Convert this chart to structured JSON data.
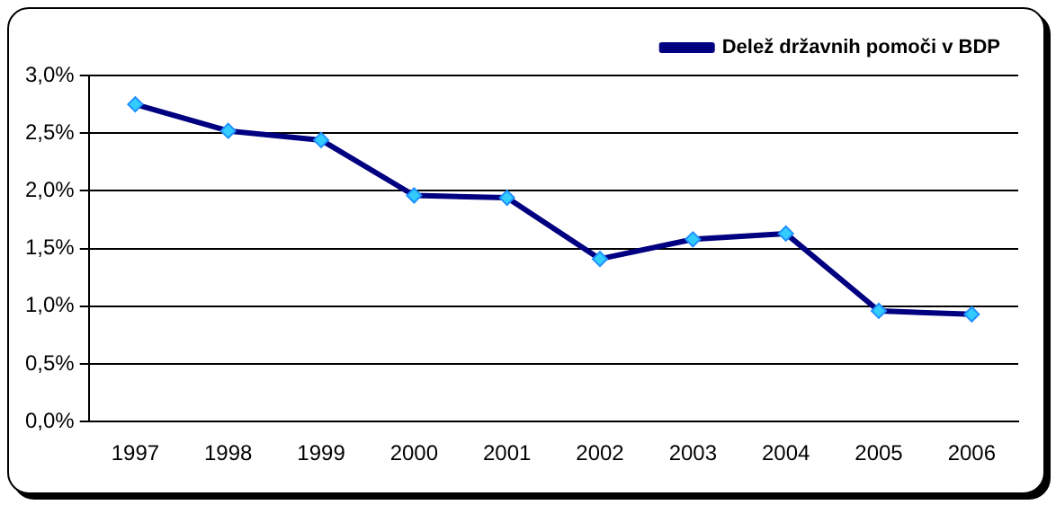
{
  "chart_data": {
    "type": "line",
    "categories": [
      "1997",
      "1998",
      "1999",
      "2000",
      "2001",
      "2002",
      "2003",
      "2004",
      "2005",
      "2006"
    ],
    "series": [
      {
        "name": "Delež državnih pomoči v BDP",
        "color": "#000080",
        "values": [
          2.75,
          2.52,
          2.44,
          1.96,
          1.94,
          1.41,
          1.58,
          1.63,
          0.96,
          0.93
        ]
      }
    ],
    "ylim": [
      0,
      3
    ],
    "yticks": [
      {
        "value": 0,
        "label": "0,0%"
      },
      {
        "value": 0.5,
        "label": "0,5%"
      },
      {
        "value": 1,
        "label": "1,0%"
      },
      {
        "value": 1.5,
        "label": "1,5%"
      },
      {
        "value": 2,
        "label": "2,0%"
      },
      {
        "value": 2.5,
        "label": "2,5%"
      },
      {
        "value": 3,
        "label": "3,0%"
      }
    ],
    "grid": "y",
    "legend": "top right",
    "marker": "diamond",
    "line_style": "solid"
  }
}
